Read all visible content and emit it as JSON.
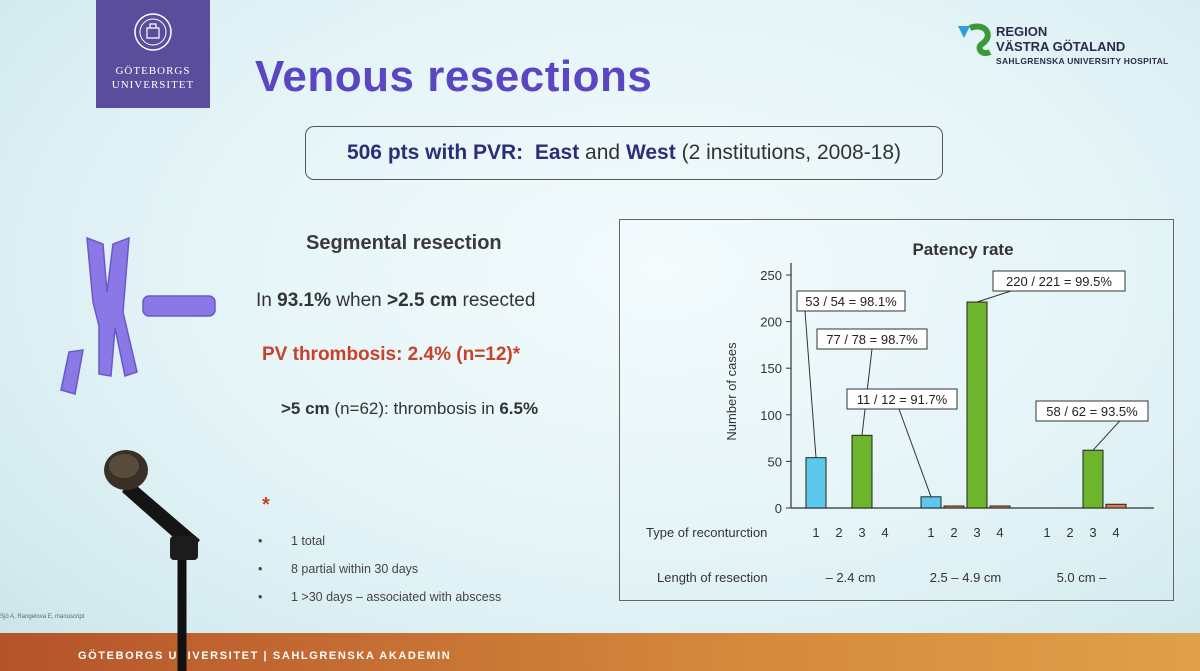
{
  "university": {
    "name_line1": "GÖTEBORGS",
    "name_line2": "UNIVERSITET"
  },
  "region": {
    "line1": "REGION",
    "line2": "VÄSTRA GÖTALAND",
    "line3": "SAHLGRENSKA UNIVERSITY HOSPITAL"
  },
  "title": "Venous resections",
  "summary_box": {
    "count": "506",
    "text1": "pts with PVR:",
    "east": "East",
    "and": "and",
    "west": "West",
    "detail": "(2 institutions, 2008-18)"
  },
  "segmental": {
    "heading": "Segmental resection",
    "line1_pre": "In",
    "line1_pct": "93.1%",
    "line1_mid": "when",
    "line1_len": ">2.5 cm",
    "line1_post": "resected",
    "thrombosis": "PV thrombosis: 2.4% (n=12)*",
    "line3_len": ">5 cm",
    "line3_mid": "(n=62): thrombosis in",
    "line3_pct": "6.5%",
    "footnote_mark": "*",
    "bullets": [
      "1 total",
      "8 partial within 30 days",
      "1 >30 days – associated with abscess"
    ],
    "citation": "Sjö A, Rangelova E, manuscript"
  },
  "chart_data": {
    "type": "bar",
    "title": "Patency rate",
    "ylabel": "Number of cases",
    "ylim": [
      0,
      250
    ],
    "yticks": [
      0,
      50,
      100,
      150,
      200,
      250
    ],
    "row1_label": "Type of reconturction",
    "row2_label": "Length of resection",
    "groups": [
      {
        "length": "– 2.4 cm",
        "bars": [
          {
            "type": "1",
            "value": 54,
            "color": "#5cc8ec"
          },
          {
            "type": "2",
            "value": 0,
            "color": "#e07a4a"
          },
          {
            "type": "3",
            "value": 78,
            "color": "#6cb52d"
          },
          {
            "type": "4",
            "value": 0,
            "color": "#e07a4a"
          }
        ]
      },
      {
        "length": "2.5 – 4.9 cm",
        "bars": [
          {
            "type": "1",
            "value": 12,
            "color": "#5cc8ec"
          },
          {
            "type": "2",
            "value": 1,
            "color": "#e07a4a"
          },
          {
            "type": "3",
            "value": 221,
            "color": "#6cb52d"
          },
          {
            "type": "4",
            "value": 1,
            "color": "#e07a4a"
          }
        ]
      },
      {
        "length": "5.0 cm –",
        "bars": [
          {
            "type": "1",
            "value": 0,
            "color": "#5cc8ec"
          },
          {
            "type": "2",
            "value": 0,
            "color": "#e07a4a"
          },
          {
            "type": "3",
            "value": 62,
            "color": "#6cb52d"
          },
          {
            "type": "4",
            "value": 4,
            "color": "#e07a4a"
          }
        ]
      }
    ],
    "annotations": [
      "53 / 54 = 98.1%",
      "77 / 78 = 98.7%",
      "11 / 12 = 91.7%",
      "220 / 221 = 99.5%",
      "58 / 62 = 93.5%"
    ]
  },
  "footer": {
    "text": "GÖTEBORGS UNIVERSITET  |  SAHLGRENSKA AKADEMIN"
  }
}
